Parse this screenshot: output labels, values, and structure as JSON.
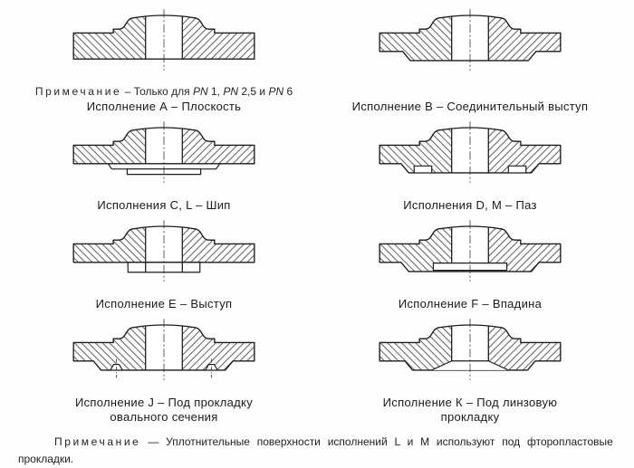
{
  "figures": [
    {
      "id": "A",
      "caption": "Исполнение А – Плоскость"
    },
    {
      "id": "B",
      "caption": "Исполнение В – Соединительный выступ"
    },
    {
      "id": "CL",
      "caption": "Исполнения С, L – Шип"
    },
    {
      "id": "DM",
      "caption": "Исполнения D, М – Паз"
    },
    {
      "id": "E",
      "caption": "Исполнение Е – Выступ"
    },
    {
      "id": "F",
      "caption": "Исполнение F – Впадина"
    },
    {
      "id": "J",
      "caption": "Исполнение J – Под прокладку",
      "caption2": "овального сечения"
    },
    {
      "id": "K",
      "caption": "Исполнение К – Под линзовую",
      "caption2": "прокладку"
    }
  ],
  "note_a": {
    "label": "Примечание",
    "dash": "–",
    "t1": "Только для",
    "pn": "PN",
    "n1": "1,",
    "n2": "2,5",
    "and_word": "и",
    "n3": "6"
  },
  "footnote": {
    "label": "Примечание",
    "dash": "—",
    "text1": "Уплотнительные поверхности исполнений L и М используют под фторопластовые",
    "text2": "прокладки."
  },
  "drawing": {
    "line_color": "#1c1c1c",
    "hatch_color": "#4d4d4d",
    "background": "#ffffff"
  }
}
